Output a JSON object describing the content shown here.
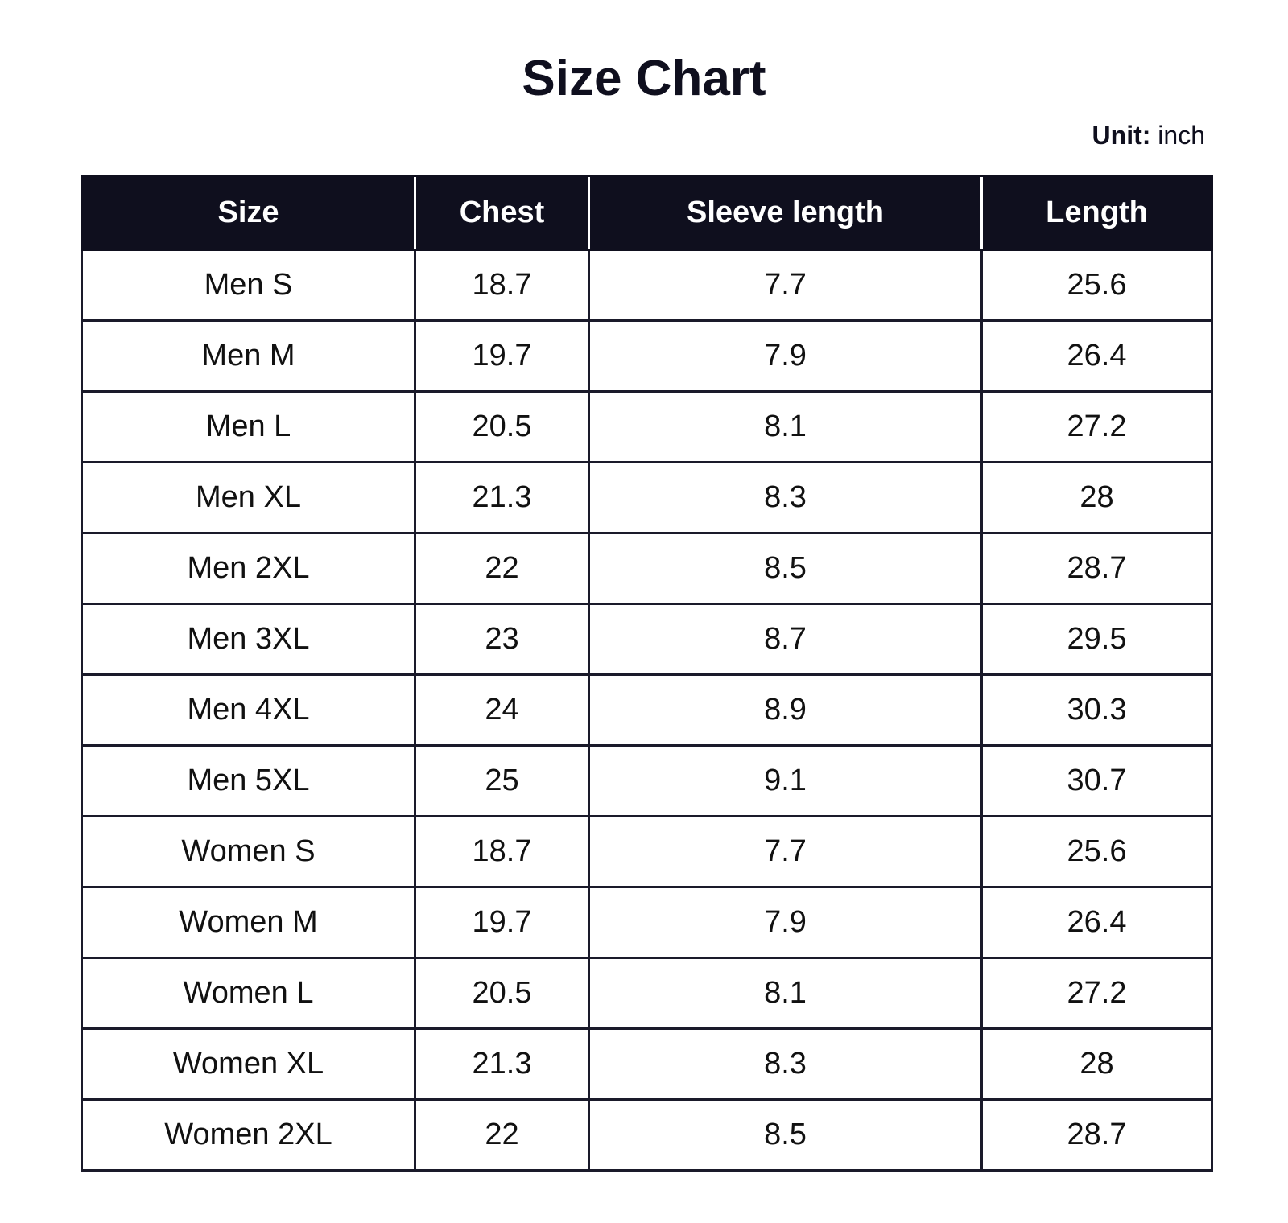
{
  "title": "Size Chart",
  "unit": {
    "label": "Unit:",
    "value": "inch"
  },
  "colors": {
    "header_background": "#0f0f1e",
    "header_text": "#ffffff",
    "border": "#1a1a2a"
  },
  "table": {
    "headers": [
      "Size",
      "Chest",
      "Sleeve length",
      "Length"
    ],
    "rows": [
      [
        "Men S",
        "18.7",
        "7.7",
        "25.6"
      ],
      [
        "Men M",
        "19.7",
        "7.9",
        "26.4"
      ],
      [
        "Men L",
        "20.5",
        "8.1",
        "27.2"
      ],
      [
        "Men XL",
        "21.3",
        "8.3",
        "28"
      ],
      [
        "Men 2XL",
        "22",
        "8.5",
        "28.7"
      ],
      [
        "Men 3XL",
        "23",
        "8.7",
        "29.5"
      ],
      [
        "Men 4XL",
        "24",
        "8.9",
        "30.3"
      ],
      [
        "Men 5XL",
        "25",
        "9.1",
        "30.7"
      ],
      [
        "Women S",
        "18.7",
        "7.7",
        "25.6"
      ],
      [
        "Women M",
        "19.7",
        "7.9",
        "26.4"
      ],
      [
        "Women L",
        "20.5",
        "8.1",
        "27.2"
      ],
      [
        "Women XL",
        "21.3",
        "8.3",
        "28"
      ],
      [
        "Women 2XL",
        "22",
        "8.5",
        "28.7"
      ]
    ]
  }
}
